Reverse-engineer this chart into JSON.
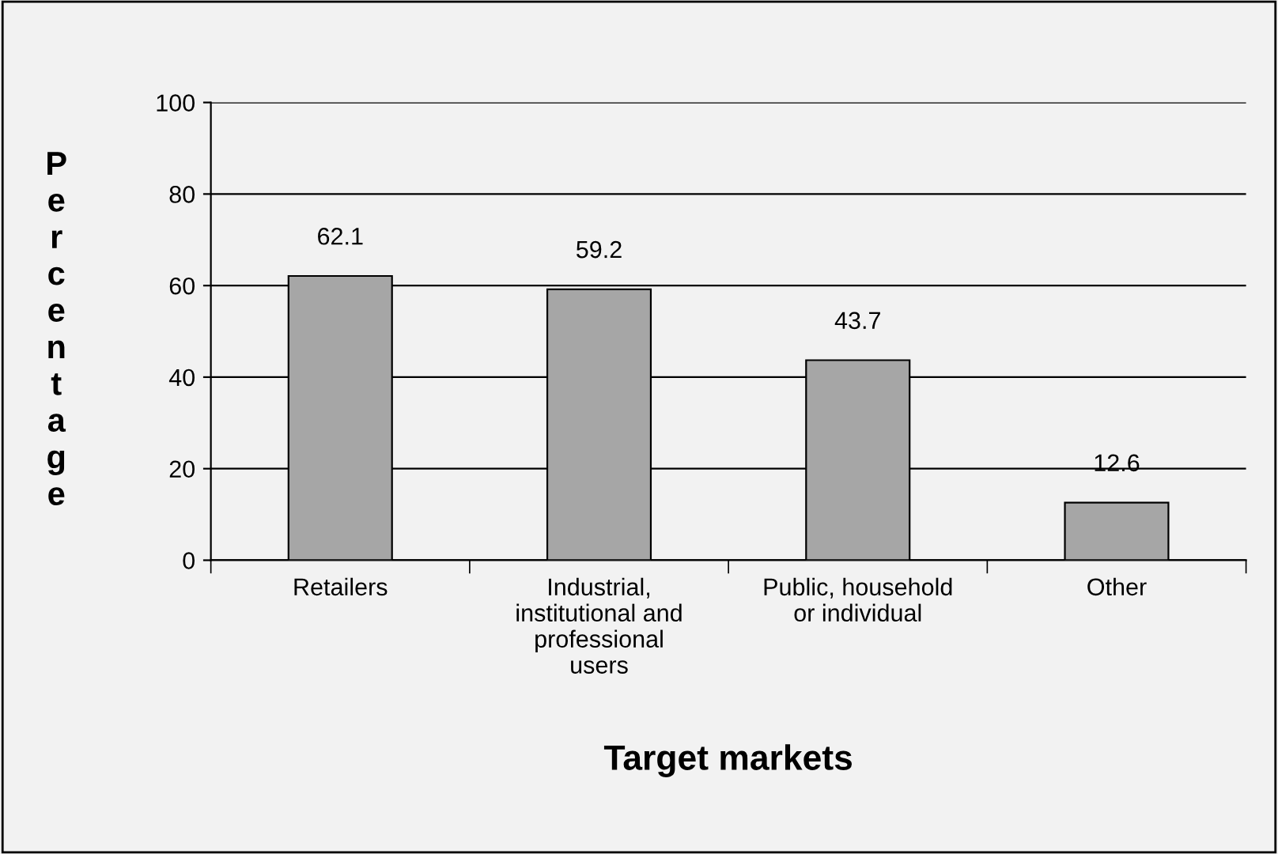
{
  "chart_data": {
    "type": "bar",
    "xlabel": "Target markets",
    "ylabel": "Percentage",
    "categories": [
      "Retailers",
      "Industrial,\ninstitutional and\nprofessional\nusers",
      "Public, household\nor individual",
      "Other"
    ],
    "values": [
      62.1,
      59.2,
      43.7,
      12.6
    ],
    "color": "#a6a6a6",
    "ylim": [
      0,
      100
    ],
    "yticks": [
      0,
      20,
      40,
      60,
      80,
      100
    ],
    "grid": "y",
    "data_labels": true
  }
}
